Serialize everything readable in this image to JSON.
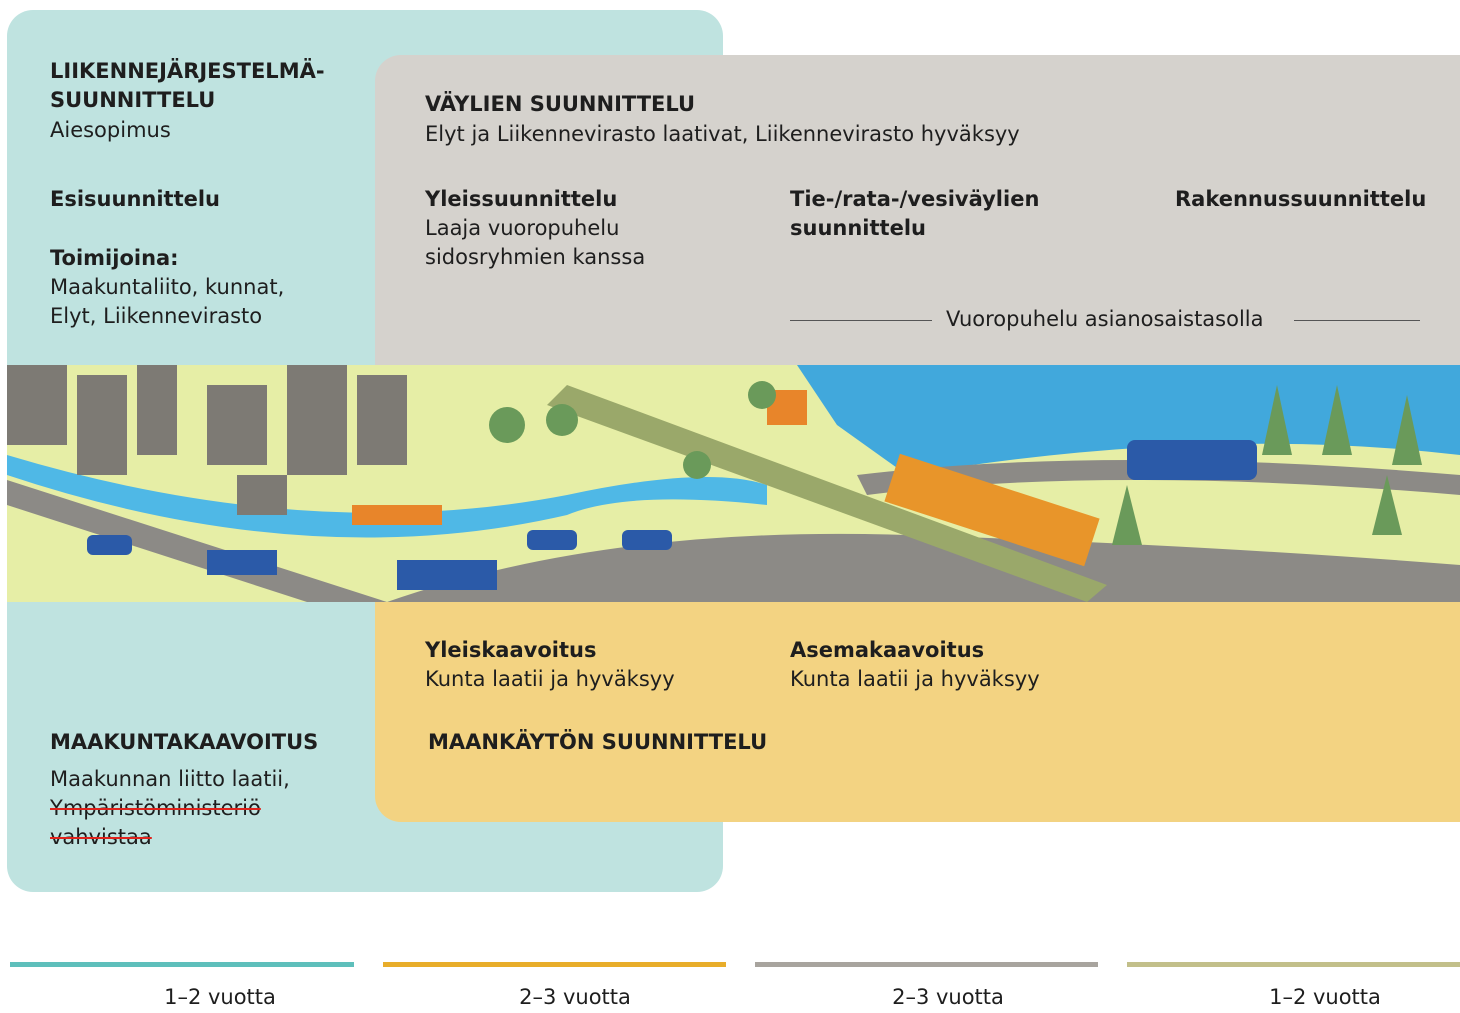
{
  "transport_system_planning": {
    "title_lines": [
      "LIIKENNEJÄRJESTELMÄ-",
      "SUUNNITTELU"
    ],
    "subtitle": "Aiesopimus",
    "pre_planning": "Esisuunnittelu",
    "actors_label": "Toimijoina:",
    "actors_lines": [
      "Maakuntaliito, kunnat,",
      "Elyt, Liikennevirasto"
    ]
  },
  "route_planning": {
    "title": "VÄYLIEN SUUNNITTELU",
    "subtitle": "Elyt ja Liikennevirasto laativat, Liikennevirasto hyväksyy",
    "stages": [
      {
        "title_lines": [
          "Yleissuunnittelu"
        ],
        "text_lines": [
          "Laaja vuoropuhelu",
          "sidosryhmien kanssa"
        ]
      },
      {
        "title_lines": [
          "Tie-/rata-/vesiväylien",
          "suunnittelu"
        ]
      },
      {
        "title_lines": [
          "Rakennussuunnittelu"
        ]
      }
    ],
    "dialogue": "Vuoropuhelu asianosaistasolla"
  },
  "land_use_planning": {
    "title": "MAANKÄYTÖN SUUNNITTELU",
    "stages": [
      {
        "title": "Yleiskaavoitus",
        "text": "Kunta laatii ja hyväksyy"
      },
      {
        "title": "Asemakaavoitus",
        "text": "Kunta laatii ja hyväksyy"
      }
    ]
  },
  "regional_planning": {
    "title": "MAAKUNTAKAAVOITUS",
    "text_lines": [
      "Maakunnan liitto laatii,"
    ],
    "struck_lines": [
      "Ympäristöministeriö",
      "vahvistaa"
    ]
  },
  "durations": [
    "1–2 vuotta",
    "2–3 vuotta",
    "2–3 vuotta",
    "1–2 vuotta"
  ]
}
